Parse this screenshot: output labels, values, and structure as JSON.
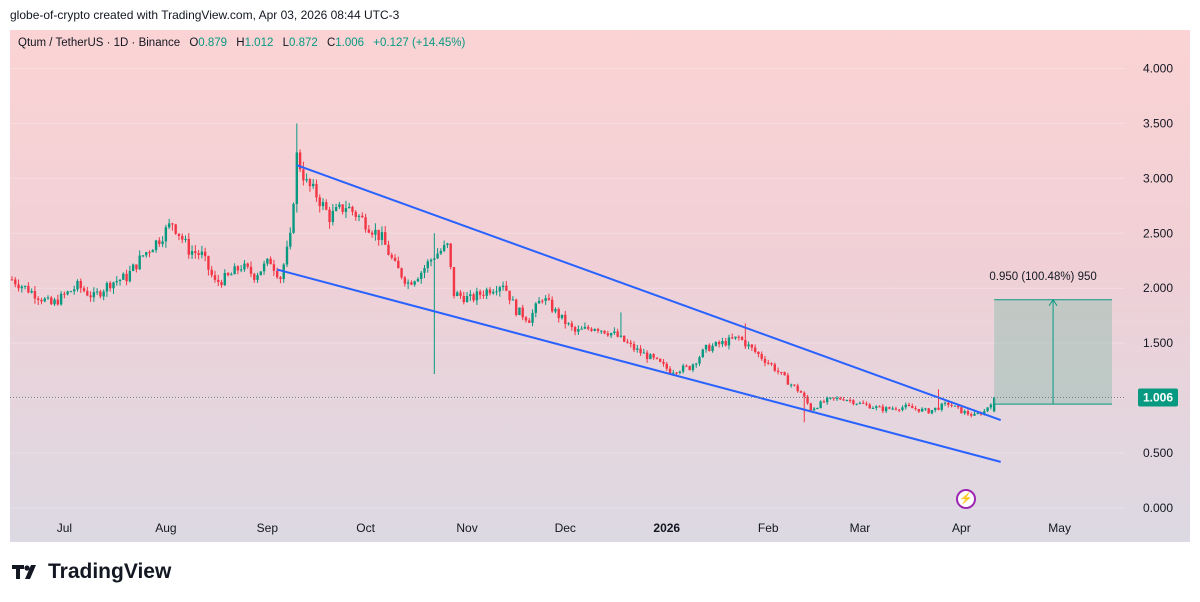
{
  "caption": "globe-of-crypto created with TradingView.com, Apr 03, 2026 08:44 UTC-3",
  "legend": {
    "symbol": "Qtum / TetherUS · 1D · Binance",
    "open_label": "O",
    "open": "0.879",
    "high_label": "H",
    "high": "1.012",
    "low_label": "L",
    "low": "0.872",
    "close_label": "C",
    "close": "1.006",
    "change": "+0.127 (+14.45%)"
  },
  "brand": {
    "name": "TradingView",
    "logo_icon": "tradingview-logo-icon"
  },
  "colors": {
    "up": "#089981",
    "down": "#f23645",
    "trendline": "#2962ff",
    "projection": "#089981"
  },
  "chart_data": {
    "type": "candlestick",
    "symbol": "QTUM/USDT",
    "interval": "1D",
    "exchange": "Binance",
    "ylim": [
      0.0,
      4.15
    ],
    "y_ticks": [
      "4.000",
      "3.500",
      "3.000",
      "2.500",
      "2.000",
      "1.500",
      "1.000",
      "0.500",
      "0.000"
    ],
    "x_ticks": [
      "Jul",
      "Aug",
      "Sep",
      "Oct",
      "Nov",
      "Dec",
      "2026",
      "Feb",
      "Mar",
      "Apr",
      "May"
    ],
    "start_date": "2025-06-15",
    "last_price": "1.006",
    "last_price_value": 1.006,
    "price_path": [
      [
        "2025-06-15",
        2.08
      ],
      [
        "2025-06-22",
        1.95
      ],
      [
        "2025-06-27",
        1.85
      ],
      [
        "2025-07-05",
        2.02
      ],
      [
        "2025-07-10",
        1.92
      ],
      [
        "2025-07-15",
        2.05
      ],
      [
        "2025-07-20",
        2.1
      ],
      [
        "2025-07-25",
        2.3
      ],
      [
        "2025-07-30",
        2.45
      ],
      [
        "2025-08-03",
        2.6
      ],
      [
        "2025-08-08",
        2.35
      ],
      [
        "2025-08-12",
        2.3
      ],
      [
        "2025-08-16",
        2.05
      ],
      [
        "2025-08-20",
        2.1
      ],
      [
        "2025-08-24",
        2.2
      ],
      [
        "2025-08-28",
        2.12
      ],
      [
        "2025-09-02",
        2.25
      ],
      [
        "2025-09-05",
        2.1
      ],
      [
        "2025-09-08",
        2.45
      ],
      [
        "2025-09-10",
        3.2
      ],
      [
        "2025-09-13",
        2.95
      ],
      [
        "2025-09-16",
        2.85
      ],
      [
        "2025-09-20",
        2.65
      ],
      [
        "2025-09-25",
        2.75
      ],
      [
        "2025-10-01",
        2.6
      ],
      [
        "2025-10-06",
        2.45
      ],
      [
        "2025-10-10",
        2.2
      ],
      [
        "2025-10-14",
        2.05
      ],
      [
        "2025-10-18",
        2.15
      ],
      [
        "2025-10-22",
        2.3
      ],
      [
        "2025-10-26",
        2.38
      ],
      [
        "2025-10-28",
        1.95
      ],
      [
        "2025-11-02",
        1.9
      ],
      [
        "2025-11-07",
        1.98
      ],
      [
        "2025-11-12",
        2.05
      ],
      [
        "2025-11-16",
        1.8
      ],
      [
        "2025-11-20",
        1.72
      ],
      [
        "2025-11-24",
        1.92
      ],
      [
        "2025-11-29",
        1.75
      ],
      [
        "2025-12-04",
        1.6
      ],
      [
        "2025-12-10",
        1.65
      ],
      [
        "2025-12-16",
        1.58
      ],
      [
        "2025-12-22",
        1.45
      ],
      [
        "2025-12-28",
        1.35
      ],
      [
        "2026-01-02",
        1.25
      ],
      [
        "2026-01-08",
        1.28
      ],
      [
        "2026-01-13",
        1.45
      ],
      [
        "2026-01-18",
        1.5
      ],
      [
        "2026-01-23",
        1.55
      ],
      [
        "2026-01-28",
        1.42
      ],
      [
        "2026-02-02",
        1.3
      ],
      [
        "2026-02-07",
        1.15
      ],
      [
        "2026-02-11",
        1.05
      ],
      [
        "2026-02-14",
        0.9
      ],
      [
        "2026-02-19",
        0.98
      ],
      [
        "2026-02-24",
        1.0
      ],
      [
        "2026-03-01",
        0.95
      ],
      [
        "2026-03-08",
        0.9
      ],
      [
        "2026-03-15",
        0.92
      ],
      [
        "2026-03-22",
        0.88
      ],
      [
        "2026-03-28",
        0.95
      ],
      [
        "2026-04-01",
        0.88
      ],
      [
        "2026-04-05",
        0.84
      ],
      [
        "2026-04-08",
        0.88
      ],
      [
        "2026-04-11",
        1.006
      ]
    ],
    "spikes": [
      {
        "date": "2025-09-10",
        "high": 3.5
      },
      {
        "date": "2025-10-22",
        "high": 2.5,
        "low": 1.22
      },
      {
        "date": "2025-12-18",
        "high": 1.78
      },
      {
        "date": "2026-01-25",
        "high": 1.68
      },
      {
        "date": "2026-02-12",
        "low": 0.78
      },
      {
        "date": "2026-03-25",
        "high": 1.08
      }
    ],
    "trendlines": [
      {
        "name": "upper",
        "from": [
          "2025-09-10",
          3.12
        ],
        "to": [
          "2026-04-13",
          0.8
        ]
      },
      {
        "name": "lower",
        "from": [
          "2025-09-04",
          2.17
        ],
        "to": [
          "2026-04-13",
          0.42
        ]
      }
    ],
    "projection": {
      "label": "0.950 (100.48%) 950",
      "from_date": "2026-04-11",
      "to_date": "2026-05-17",
      "low": 0.945,
      "high": 1.895
    }
  }
}
